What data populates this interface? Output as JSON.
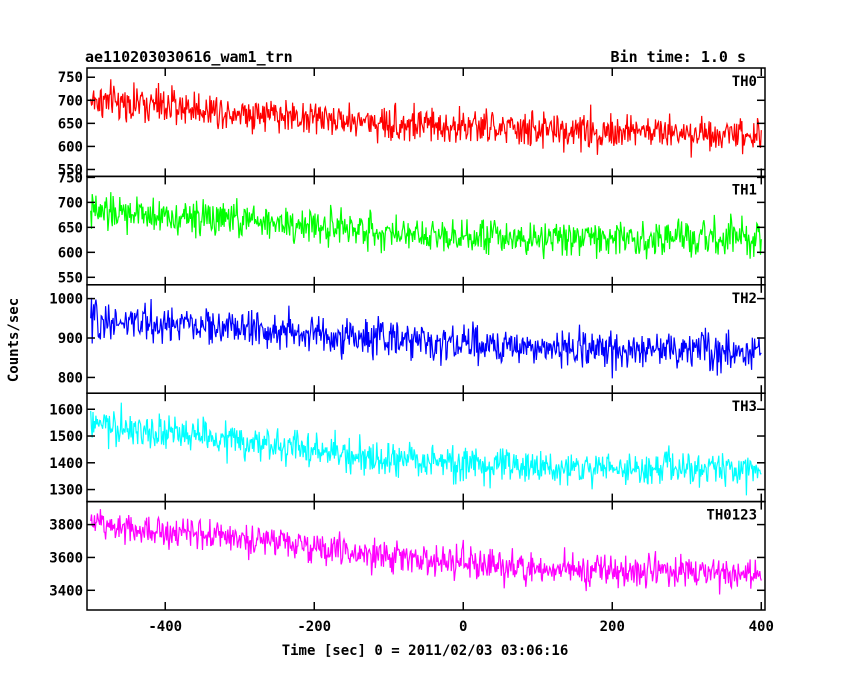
{
  "header": {
    "title": "ae110203030616_wam1_trn",
    "bin_time": "Bin time: 1.0 s"
  },
  "chart_data": {
    "type": "line",
    "xlabel": "Time [sec] 0 = 2011/02/03 03:06:16",
    "ylabel": "Counts/sec",
    "xlim": [
      -505,
      405
    ],
    "x_ticks": [
      -400,
      -200,
      0,
      200,
      400
    ],
    "x_range_data": [
      -500,
      400
    ],
    "bin_seconds": 1.0,
    "panels": [
      {
        "name": "TH0",
        "color": "#ff0000",
        "ylim": [
          535,
          770
        ],
        "y_ticks": [
          550,
          600,
          650,
          700,
          750
        ],
        "trend": [
          {
            "x": -500,
            "y": 700
          },
          {
            "x": -300,
            "y": 675
          },
          {
            "x": -100,
            "y": 650
          },
          {
            "x": 100,
            "y": 635
          },
          {
            "x": 400,
            "y": 628
          }
        ],
        "spread": 33
      },
      {
        "name": "TH1",
        "color": "#00ff00",
        "ylim": [
          535,
          752
        ],
        "y_ticks": [
          550,
          600,
          650,
          700,
          750
        ],
        "trend": [
          {
            "x": -500,
            "y": 680
          },
          {
            "x": -300,
            "y": 665
          },
          {
            "x": -100,
            "y": 640
          },
          {
            "x": 100,
            "y": 630
          },
          {
            "x": 400,
            "y": 625
          }
        ],
        "spread": 30
      },
      {
        "name": "TH2",
        "color": "#0000ff",
        "ylim": [
          760,
          1035
        ],
        "y_ticks": [
          800,
          900,
          1000
        ],
        "trend": [
          {
            "x": -500,
            "y": 945
          },
          {
            "x": -300,
            "y": 925
          },
          {
            "x": -100,
            "y": 895
          },
          {
            "x": 100,
            "y": 875
          },
          {
            "x": 400,
            "y": 868
          }
        ],
        "spread": 40
      },
      {
        "name": "TH3",
        "color": "#00ffff",
        "ylim": [
          1255,
          1660
        ],
        "y_ticks": [
          1300,
          1400,
          1500,
          1600
        ],
        "trend": [
          {
            "x": -500,
            "y": 1540
          },
          {
            "x": -300,
            "y": 1480
          },
          {
            "x": -100,
            "y": 1410
          },
          {
            "x": 100,
            "y": 1380
          },
          {
            "x": 400,
            "y": 1375
          }
        ],
        "spread": 55
      },
      {
        "name": "TH0123",
        "color": "#ff00ff",
        "ylim": [
          3280,
          3940
        ],
        "y_ticks": [
          3400,
          3600,
          3800
        ],
        "trend": [
          {
            "x": -500,
            "y": 3810
          },
          {
            "x": -300,
            "y": 3720
          },
          {
            "x": -100,
            "y": 3600
          },
          {
            "x": 100,
            "y": 3530
          },
          {
            "x": 400,
            "y": 3500
          }
        ],
        "spread": 80
      }
    ]
  }
}
